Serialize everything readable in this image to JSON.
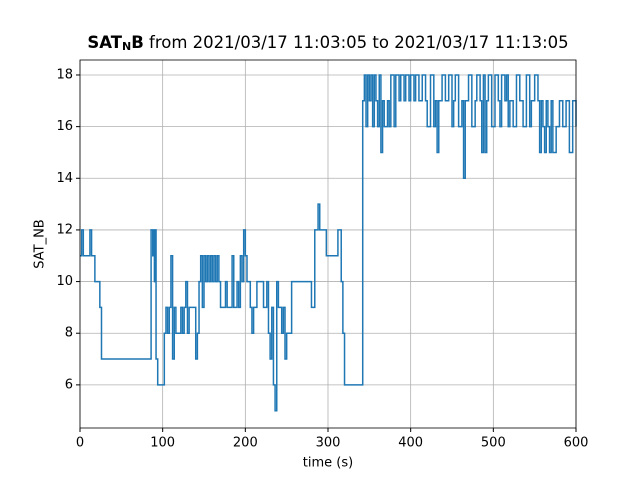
{
  "chart_data": {
    "type": "step",
    "title": {
      "bold": "SAT",
      "subscript": "N",
      "bold_end": "B",
      "rest": " from 2021/03/17 11:03:05 to 2021/03/17 11:13:05"
    },
    "x_label": "time (s)",
    "y_label": "SAT_NB",
    "xlim": [
      0,
      600
    ],
    "xticks": [
      0,
      100,
      200,
      300,
      400,
      500,
      600
    ],
    "ylim": [
      4.33,
      18.58
    ],
    "yticks": [
      6,
      8,
      10,
      12,
      14,
      16,
      18
    ],
    "grid": true,
    "series": [
      {
        "name": "SAT_NB",
        "color": "#1f77b4",
        "x": [
          0,
          2,
          4,
          8,
          12,
          14,
          18,
          22,
          24,
          26,
          85,
          86,
          88,
          89,
          90,
          91,
          92,
          94,
          100,
          102,
          104,
          106,
          108,
          110,
          112,
          114,
          116,
          120,
          122,
          124,
          126,
          128,
          130,
          132,
          140,
          142,
          144,
          146,
          148,
          150,
          152,
          154,
          156,
          158,
          160,
          162,
          164,
          166,
          168,
          170,
          176,
          178,
          184,
          186,
          190,
          192,
          194,
          196,
          198,
          200,
          202,
          206,
          208,
          210,
          214,
          222,
          226,
          228,
          230,
          232,
          234,
          236,
          238,
          240,
          244,
          246,
          248,
          250,
          256,
          274,
          280,
          284,
          288,
          290,
          296,
          298,
          306,
          312,
          316,
          318,
          320,
          340,
          342,
          344,
          346,
          348,
          350,
          352,
          354,
          356,
          358,
          360,
          362,
          364,
          366,
          368,
          372,
          374,
          376,
          380,
          382,
          386,
          388,
          392,
          394,
          398,
          400,
          404,
          406,
          410,
          414,
          418,
          420,
          424,
          428,
          430,
          432,
          434,
          438,
          442,
          446,
          450,
          452,
          454,
          458,
          462,
          464,
          466,
          470,
          474,
          478,
          480,
          484,
          486,
          488,
          490,
          492,
          494,
          498,
          502,
          506,
          508,
          510,
          514,
          516,
          518,
          520,
          524,
          528,
          532,
          536,
          540,
          544,
          546,
          550,
          554,
          556,
          558,
          560,
          562,
          564,
          566,
          568,
          570,
          572,
          576,
          580,
          584,
          588,
          592,
          596,
          600
        ],
        "values": [
          11,
          12,
          11,
          11,
          12,
          11,
          10,
          10,
          9,
          7,
          7,
          12,
          11,
          12,
          10,
          12,
          7,
          6,
          6,
          8,
          9,
          8,
          9,
          11,
          7,
          9,
          8,
          8,
          9,
          8,
          9,
          10,
          8,
          9,
          7,
          8,
          10,
          11,
          9,
          11,
          10,
          11,
          10,
          11,
          10,
          11,
          10,
          11,
          10,
          9,
          10,
          9,
          11,
          9,
          10,
          9,
          11,
          10,
          12,
          11,
          10,
          9,
          8,
          9,
          10,
          9,
          10,
          8,
          7,
          9,
          6,
          5,
          10,
          9,
          8,
          9,
          7,
          8,
          10,
          10,
          9,
          12,
          13,
          12,
          12,
          11,
          11,
          12,
          10,
          8,
          6,
          6,
          17,
          18,
          16,
          18,
          17,
          18,
          16,
          18,
          17,
          16,
          18,
          15,
          17,
          16,
          17,
          16,
          18,
          16,
          18,
          17,
          18,
          17,
          18,
          17,
          18,
          17,
          18,
          17,
          18,
          17,
          16,
          18,
          16,
          17,
          15,
          17,
          18,
          17,
          18,
          16,
          17,
          18,
          16,
          17,
          14,
          17,
          18,
          16,
          17,
          18,
          17,
          15,
          18,
          15,
          17,
          18,
          16,
          18,
          17,
          16,
          18,
          17,
          18,
          16,
          17,
          16,
          18,
          17,
          16,
          18,
          16,
          17,
          18,
          17,
          15,
          17,
          16,
          15,
          17,
          16,
          15,
          17,
          15,
          16,
          17,
          16,
          17,
          15,
          17,
          16
        ]
      }
    ]
  }
}
